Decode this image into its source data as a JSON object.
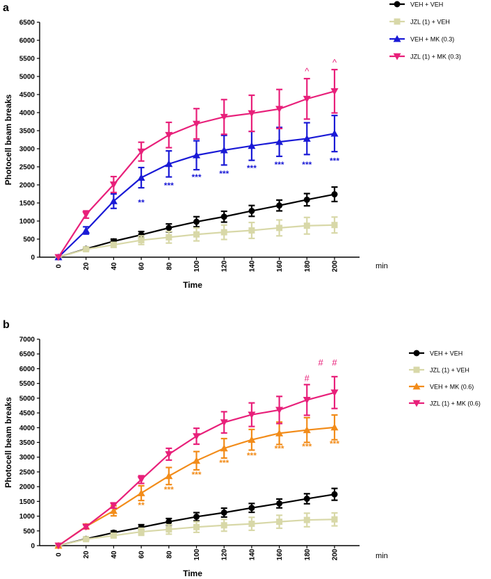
{
  "chart_data": [
    {
      "type": "line",
      "panel_label": "a",
      "xlabel": "Time",
      "x_unit": "min",
      "ylabel": "Photocell beam breaks",
      "x": [
        0,
        20,
        40,
        60,
        80,
        100,
        120,
        140,
        160,
        180,
        200
      ],
      "ylim": [
        0,
        6500
      ],
      "yticks": [
        0,
        500,
        1000,
        1500,
        2000,
        2500,
        3000,
        3500,
        4000,
        4500,
        5000,
        5500,
        6000,
        6500
      ],
      "series": [
        {
          "name": "VEH + VEH",
          "color": "#000000",
          "marker": "circle",
          "values": [
            0,
            230,
            440,
            620,
            810,
            980,
            1120,
            1280,
            1430,
            1590,
            1740
          ],
          "errors": [
            0,
            30,
            60,
            90,
            110,
            140,
            150,
            150,
            150,
            170,
            200
          ]
        },
        {
          "name": "JZL (1) + VEH",
          "color": "#d8d8a8",
          "marker": "square",
          "values": [
            0,
            220,
            340,
            470,
            550,
            630,
            690,
            740,
            810,
            870,
            890
          ],
          "errors": [
            0,
            40,
            70,
            120,
            160,
            180,
            200,
            220,
            220,
            230,
            220
          ]
        },
        {
          "name": "VEH + MK (0.3)",
          "color": "#1a1ad6",
          "marker": "triangle-up",
          "values": [
            0,
            740,
            1550,
            2200,
            2580,
            2820,
            2960,
            3080,
            3190,
            3280,
            3420
          ],
          "errors": [
            0,
            100,
            200,
            280,
            360,
            400,
            410,
            400,
            400,
            440,
            500
          ]
        },
        {
          "name": "JZL (1) + MK (0.3)",
          "color": "#e8207a",
          "marker": "triangle-down",
          "values": [
            0,
            1180,
            2010,
            2920,
            3380,
            3690,
            3880,
            3980,
            4100,
            4380,
            4590
          ],
          "errors": [
            0,
            100,
            220,
            260,
            350,
            420,
            480,
            500,
            540,
            560,
            600
          ]
        }
      ],
      "annotations": [
        {
          "x": 60,
          "text": "**",
          "color": "#1a1ad6",
          "y": 1550
        },
        {
          "x": 80,
          "text": "***",
          "color": "#1a1ad6",
          "y": 2020
        },
        {
          "x": 100,
          "text": "***",
          "color": "#1a1ad6",
          "y": 2250
        },
        {
          "x": 120,
          "text": "***",
          "color": "#1a1ad6",
          "y": 2350
        },
        {
          "x": 140,
          "text": "***",
          "color": "#1a1ad6",
          "y": 2500
        },
        {
          "x": 160,
          "text": "***",
          "color": "#1a1ad6",
          "y": 2600
        },
        {
          "x": 180,
          "text": "***",
          "color": "#1a1ad6",
          "y": 2600
        },
        {
          "x": 200,
          "text": "***",
          "color": "#1a1ad6",
          "y": 2700
        },
        {
          "x": 180,
          "text": "^",
          "color": "#e8207a",
          "y": 5060
        },
        {
          "x": 200,
          "text": "^",
          "color": "#e8207a",
          "y": 5300
        }
      ],
      "legend_placement": "top-right, outside"
    },
    {
      "type": "line",
      "panel_label": "b",
      "xlabel": "Time",
      "x_unit": "min",
      "ylabel": "Photocell beam breaks",
      "x": [
        0,
        20,
        40,
        60,
        80,
        100,
        120,
        140,
        160,
        180,
        200
      ],
      "ylim": [
        0,
        7000
      ],
      "yticks": [
        0,
        500,
        1000,
        1500,
        2000,
        2500,
        3000,
        3500,
        4000,
        4500,
        5000,
        5500,
        6000,
        6500,
        7000
      ],
      "series": [
        {
          "name": "VEH + VEH",
          "color": "#000000",
          "marker": "circle",
          "values": [
            0,
            230,
            440,
            620,
            810,
            980,
            1120,
            1280,
            1430,
            1590,
            1740
          ],
          "errors": [
            0,
            30,
            60,
            90,
            110,
            140,
            150,
            150,
            150,
            170,
            200
          ]
        },
        {
          "name": "JZL (1) + VEH",
          "color": "#d8d8a8",
          "marker": "square",
          "values": [
            0,
            220,
            340,
            470,
            550,
            630,
            690,
            740,
            810,
            870,
            890
          ],
          "errors": [
            0,
            40,
            70,
            120,
            160,
            180,
            200,
            220,
            220,
            230,
            220
          ]
        },
        {
          "name": "VEH + MK (0.6)",
          "color": "#f28c1a",
          "marker": "triangle-up",
          "values": [
            0,
            650,
            1180,
            1780,
            2360,
            2880,
            3300,
            3590,
            3810,
            3920,
            4010
          ],
          "errors": [
            0,
            80,
            170,
            250,
            290,
            310,
            330,
            350,
            380,
            420,
            420
          ]
        },
        {
          "name": "JZL (1) + MK (0.6)",
          "color": "#e8207a",
          "marker": "triangle-down",
          "values": [
            0,
            640,
            1360,
            2240,
            3100,
            3710,
            4180,
            4440,
            4600,
            4940,
            5190
          ],
          "errors": [
            0,
            60,
            90,
            130,
            200,
            270,
            360,
            400,
            460,
            520,
            540
          ]
        }
      ],
      "annotations": [
        {
          "x": 60,
          "text": "**",
          "color": "#f28c1a",
          "y": 1420
        },
        {
          "x": 80,
          "text": "***",
          "color": "#f28c1a",
          "y": 1950
        },
        {
          "x": 100,
          "text": "***",
          "color": "#f28c1a",
          "y": 2450
        },
        {
          "x": 120,
          "text": "***",
          "color": "#f28c1a",
          "y": 2850
        },
        {
          "x": 140,
          "text": "***",
          "color": "#f28c1a",
          "y": 3100
        },
        {
          "x": 160,
          "text": "***",
          "color": "#f28c1a",
          "y": 3330
        },
        {
          "x": 180,
          "text": "***",
          "color": "#f28c1a",
          "y": 3400
        },
        {
          "x": 200,
          "text": "***",
          "color": "#f28c1a",
          "y": 3500
        },
        {
          "x": 180,
          "text": "#",
          "color": "#e8207a",
          "y": 5570
        },
        {
          "x": 190,
          "text": "#",
          "color": "#e8207a",
          "y": 6100
        },
        {
          "x": 200,
          "text": "#",
          "color": "#e8207a",
          "y": 6100
        }
      ],
      "legend_placement": "top-right, outside"
    }
  ]
}
